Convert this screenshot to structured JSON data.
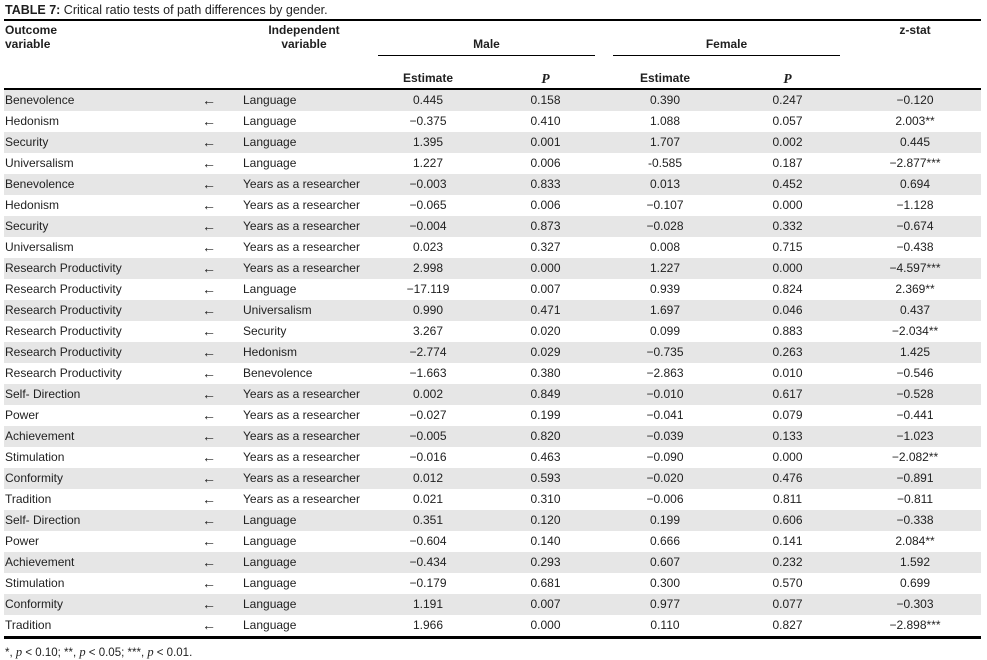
{
  "title": {
    "label": "TABLE 7:",
    "text": " Critical ratio tests of path differences by gender."
  },
  "table": {
    "arrow": "←",
    "columns": {
      "outcome": "Outcome\nvariable",
      "independent": "Independent\nvariable",
      "z_stat": "z-stat"
    },
    "group_headers": {
      "male": "Male",
      "female": "Female"
    },
    "sub_headers": {
      "estimate": "Estimate",
      "p": "P"
    },
    "rows": [
      {
        "outcome": "Benevolence",
        "independent": "Language",
        "male_estimate": "0.445",
        "male_p": "0.158",
        "female_estimate": "0.390",
        "female_p": "0.247",
        "z_stat": "−0.120"
      },
      {
        "outcome": "Hedonism",
        "independent": "Language",
        "male_estimate": "−0.375",
        "male_p": "0.410",
        "female_estimate": "1.088",
        "female_p": "0.057",
        "z_stat": "2.003**"
      },
      {
        "outcome": "Security",
        "independent": "Language",
        "male_estimate": "1.395",
        "male_p": "0.001",
        "female_estimate": "1.707",
        "female_p": "0.002",
        "z_stat": "0.445"
      },
      {
        "outcome": "Universalism",
        "independent": "Language",
        "male_estimate": "1.227",
        "male_p": "0.006",
        "female_estimate": "-0.585",
        "female_p": "0.187",
        "z_stat": "−2.877***"
      },
      {
        "outcome": "Benevolence",
        "independent": "Years as a researcher",
        "male_estimate": "−0.003",
        "male_p": "0.833",
        "female_estimate": "0.013",
        "female_p": "0.452",
        "z_stat": "0.694"
      },
      {
        "outcome": "Hedonism",
        "independent": "Years as a researcher",
        "male_estimate": "−0.065",
        "male_p": "0.006",
        "female_estimate": "−0.107",
        "female_p": "0.000",
        "z_stat": "−1.128"
      },
      {
        "outcome": "Security",
        "independent": "Years as a researcher",
        "male_estimate": "−0.004",
        "male_p": "0.873",
        "female_estimate": "−0.028",
        "female_p": "0.332",
        "z_stat": "−0.674"
      },
      {
        "outcome": "Universalism",
        "independent": "Years as a researcher",
        "male_estimate": "0.023",
        "male_p": "0.327",
        "female_estimate": "0.008",
        "female_p": "0.715",
        "z_stat": "−0.438"
      },
      {
        "outcome": "Research Productivity",
        "independent": "Years as a researcher",
        "male_estimate": "2.998",
        "male_p": "0.000",
        "female_estimate": "1.227",
        "female_p": "0.000",
        "z_stat": "−4.597***"
      },
      {
        "outcome": "Research Productivity",
        "independent": "Language",
        "male_estimate": "−17.119",
        "male_p": "0.007",
        "female_estimate": "0.939",
        "female_p": "0.824",
        "z_stat": "2.369**"
      },
      {
        "outcome": "Research Productivity",
        "independent": "Universalism",
        "male_estimate": "0.990",
        "male_p": "0.471",
        "female_estimate": "1.697",
        "female_p": "0.046",
        "z_stat": "0.437"
      },
      {
        "outcome": "Research Productivity",
        "independent": "Security",
        "male_estimate": "3.267",
        "male_p": "0.020",
        "female_estimate": "0.099",
        "female_p": "0.883",
        "z_stat": "−2.034**"
      },
      {
        "outcome": "Research Productivity",
        "independent": "Hedonism",
        "male_estimate": "−2.774",
        "male_p": "0.029",
        "female_estimate": "−0.735",
        "female_p": "0.263",
        "z_stat": "1.425"
      },
      {
        "outcome": "Research Productivity",
        "independent": "Benevolence",
        "male_estimate": "−1.663",
        "male_p": "0.380",
        "female_estimate": "−2.863",
        "female_p": "0.010",
        "z_stat": "−0.546"
      },
      {
        "outcome": "Self- Direction",
        "independent": "Years as a researcher",
        "male_estimate": "0.002",
        "male_p": "0.849",
        "female_estimate": "−0.010",
        "female_p": "0.617",
        "z_stat": "−0.528"
      },
      {
        "outcome": "Power",
        "independent": "Years as a researcher",
        "male_estimate": "−0.027",
        "male_p": "0.199",
        "female_estimate": "−0.041",
        "female_p": "0.079",
        "z_stat": "−0.441"
      },
      {
        "outcome": "Achievement",
        "independent": "Years as a researcher",
        "male_estimate": "−0.005",
        "male_p": "0.820",
        "female_estimate": "−0.039",
        "female_p": "0.133",
        "z_stat": "−1.023"
      },
      {
        "outcome": "Stimulation",
        "independent": "Years as a researcher",
        "male_estimate": "−0.016",
        "male_p": "0.463",
        "female_estimate": "−0.090",
        "female_p": "0.000",
        "z_stat": "−2.082**"
      },
      {
        "outcome": "Conformity",
        "independent": "Years as a researcher",
        "male_estimate": "0.012",
        "male_p": "0.593",
        "female_estimate": "−0.020",
        "female_p": "0.476",
        "z_stat": "−0.891"
      },
      {
        "outcome": "Tradition",
        "independent": "Years as a researcher",
        "male_estimate": "0.021",
        "male_p": "0.310",
        "female_estimate": "−0.006",
        "female_p": "0.811",
        "z_stat": "−0.811"
      },
      {
        "outcome": "Self- Direction",
        "independent": "Language",
        "male_estimate": "0.351",
        "male_p": "0.120",
        "female_estimate": "0.199",
        "female_p": "0.606",
        "z_stat": "−0.338"
      },
      {
        "outcome": "Power",
        "independent": "Language",
        "male_estimate": "−0.604",
        "male_p": "0.140",
        "female_estimate": "0.666",
        "female_p": "0.141",
        "z_stat": "2.084**"
      },
      {
        "outcome": "Achievement",
        "independent": "Language",
        "male_estimate": "−0.434",
        "male_p": "0.293",
        "female_estimate": "0.607",
        "female_p": "0.232",
        "z_stat": "1.592"
      },
      {
        "outcome": "Stimulation",
        "independent": "Language",
        "male_estimate": "−0.179",
        "male_p": "0.681",
        "female_estimate": "0.300",
        "female_p": "0.570",
        "z_stat": "0.699"
      },
      {
        "outcome": "Conformity",
        "independent": "Language",
        "male_estimate": "1.191",
        "male_p": "0.007",
        "female_estimate": "0.977",
        "female_p": "0.077",
        "z_stat": "−0.303"
      },
      {
        "outcome": "Tradition",
        "independent": "Language",
        "male_estimate": "1.966",
        "male_p": "0.000",
        "female_estimate": "0.110",
        "female_p": "0.827",
        "z_stat": "−2.898***"
      }
    ]
  },
  "footnote": {
    "segments": [
      {
        "text": "*"
      },
      {
        "text": ", "
      },
      {
        "text": "p",
        "italic": true
      },
      {
        "text": " < 0.10; "
      },
      {
        "text": "**"
      },
      {
        "text": ", "
      },
      {
        "text": "p",
        "italic": true
      },
      {
        "text": " < 0.05; "
      },
      {
        "text": "***"
      },
      {
        "text": ", "
      },
      {
        "text": "p",
        "italic": true
      },
      {
        "text": " < 0.01."
      }
    ]
  },
  "colors": {
    "stripe": "#e6e6e6",
    "rule": "#000000",
    "text": "#1f1f1f"
  }
}
